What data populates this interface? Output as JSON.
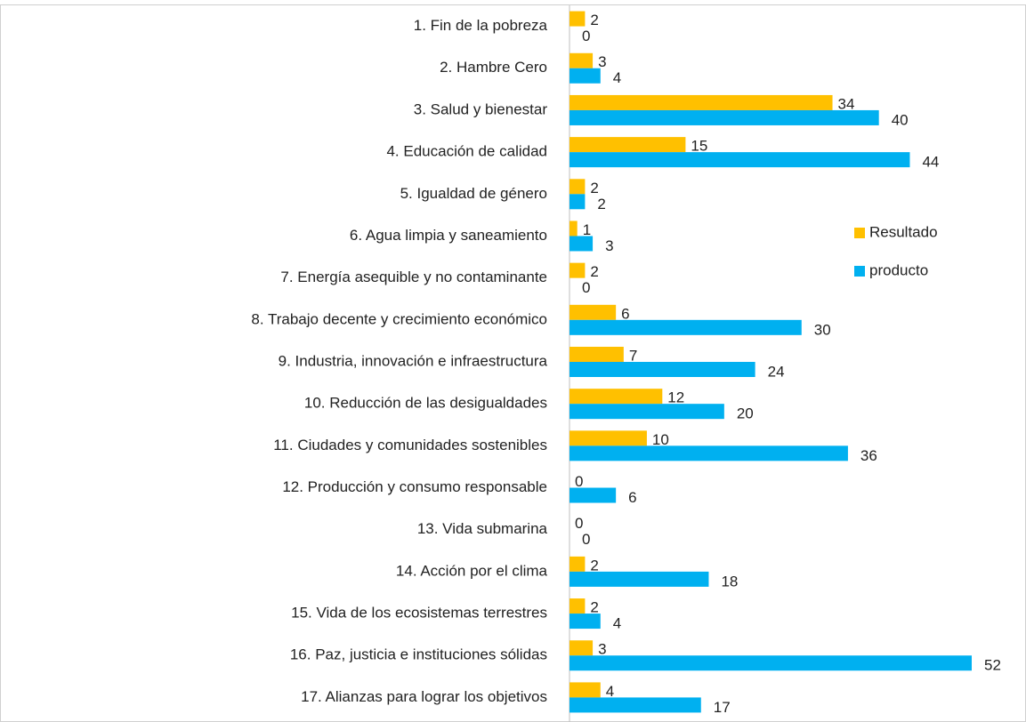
{
  "chart_data": {
    "type": "barh",
    "categories": [
      "1. Fin de la pobreza",
      "2. Hambre Cero",
      "3. Salud y bienestar",
      "4. Educación de calidad",
      "5. Igualdad de género",
      "6. Agua limpia y saneamiento",
      "7. Energía asequible y no contaminante",
      "8. Trabajo decente y crecimiento económico",
      "9. Industria, innovación e infraestructura",
      "10. Reducción de las desigualdades",
      "11. Ciudades y comunidades sostenibles",
      "12. Producción y consumo responsable",
      "13. Vida submarina",
      "14. Acción por el clima",
      "15. Vida de los ecosistemas terrestres",
      "16. Paz, justicia e instituciones sólidas",
      "17. Alianzas para lograr los objetivos"
    ],
    "series": [
      {
        "name": "Resultado",
        "color": "#ffc000",
        "values": [
          2,
          3,
          34,
          15,
          2,
          1,
          2,
          6,
          7,
          12,
          10,
          0,
          0,
          2,
          2,
          3,
          4
        ]
      },
      {
        "name": "producto",
        "color": "#00b0f0",
        "values": [
          0,
          4,
          40,
          44,
          2,
          3,
          0,
          30,
          24,
          20,
          36,
          6,
          0,
          18,
          4,
          52,
          17
        ]
      }
    ],
    "xlim": [
      0,
      52
    ],
    "legend": "right"
  }
}
